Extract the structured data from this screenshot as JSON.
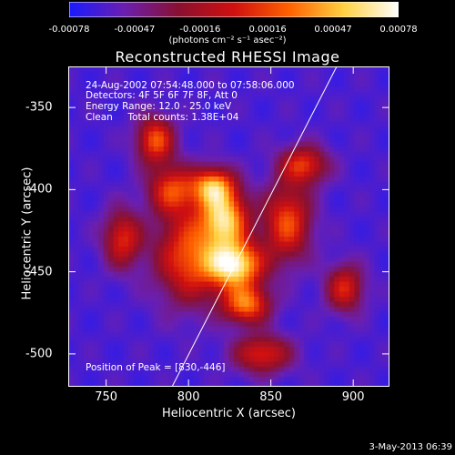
{
  "colorbar": {
    "ticks": [
      "-0.00078",
      "-0.00047",
      "-0.00016",
      "0.00016",
      "0.00047",
      "0.00078"
    ],
    "tick_values": [
      -0.00078,
      -0.00047,
      -0.00016,
      0.00016,
      0.00047,
      0.00078
    ],
    "units": "(photons cm⁻² s⁻¹ asec⁻²)",
    "colors": [
      "#1a1aff",
      "#6a1fb0",
      "#8a1030",
      "#d01010",
      "#ff6000",
      "#ffd040",
      "#ffffff"
    ]
  },
  "info": {
    "time": "24-Aug-2002 07:54:48.000 to 07:58:06.000",
    "detectors": "Detectors: 4F 5F 6F 7F 8F, Att 0",
    "energy": "Energy Range: 12.0 - 25.0 keV",
    "clean": "Clean     Total counts: 1.38E+04",
    "peak": "Position of Peak = [830,-446]"
  },
  "datestamp": "3-May-2013 06:39",
  "chart_data": {
    "type": "heatmap",
    "title": "Reconstructed RHESSI Image",
    "xlabel": "Heliocentric X (arcsec)",
    "ylabel": "Heliocentric Y (arcsec)",
    "xlim": [
      727,
      922
    ],
    "ylim": [
      -520,
      -325
    ],
    "xticks": [
      750,
      800,
      850,
      900
    ],
    "yticks": [
      -350,
      -400,
      -450,
      -500
    ],
    "xtick_labels": [
      "750",
      "800",
      "850",
      "900"
    ],
    "ytick_labels": [
      "-350",
      "-400",
      "-450",
      "-500"
    ],
    "peak": [
      830,
      -446
    ],
    "limb_line": [
      [
        790,
        -520
      ],
      [
        890,
        -325
      ]
    ],
    "sources": [
      {
        "x": 828,
        "y": -446,
        "sx": 12,
        "sy": 10,
        "amp": 0.00078
      },
      {
        "x": 822,
        "y": -418,
        "sx": 10,
        "sy": 12,
        "amp": 0.00062
      },
      {
        "x": 815,
        "y": -398,
        "sx": 9,
        "sy": 8,
        "amp": 0.00045
      },
      {
        "x": 835,
        "y": -470,
        "sx": 10,
        "sy": 8,
        "amp": 0.0004
      },
      {
        "x": 780,
        "y": -370,
        "sx": 8,
        "sy": 10,
        "amp": 0.00032
      },
      {
        "x": 800,
        "y": -440,
        "sx": 14,
        "sy": 20,
        "amp": 0.0003
      },
      {
        "x": 860,
        "y": -420,
        "sx": 10,
        "sy": 16,
        "amp": 0.0003
      },
      {
        "x": 870,
        "y": -385,
        "sx": 10,
        "sy": 8,
        "amp": 0.00022
      },
      {
        "x": 790,
        "y": -400,
        "sx": 10,
        "sy": 10,
        "amp": 0.00022
      },
      {
        "x": 845,
        "y": -500,
        "sx": 12,
        "sy": 8,
        "amp": 0.00018
      },
      {
        "x": 760,
        "y": -430,
        "sx": 8,
        "sy": 12,
        "amp": 0.00018
      },
      {
        "x": 895,
        "y": -460,
        "sx": 8,
        "sy": 10,
        "amp": 0.00016
      }
    ]
  }
}
